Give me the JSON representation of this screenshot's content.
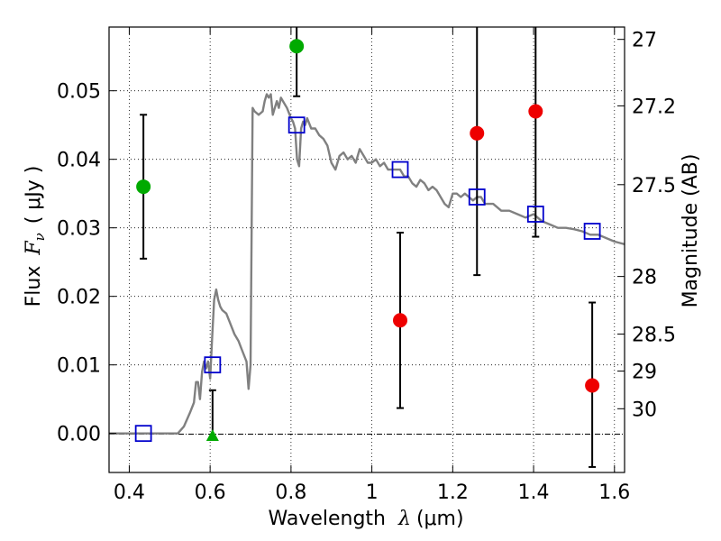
{
  "chart_data": {
    "type": "scatter",
    "xlabel": {
      "prefix": "Wavelength",
      "symbol": "λ",
      "units": "(μm)"
    },
    "ylabel": {
      "prefix": "Flux",
      "symbol": "F",
      "subscript": "ν",
      "units": "( μJy )"
    },
    "right_axis_label": "Magnitude (AB)",
    "xlim": [
      0.35,
      1.625
    ],
    "ylim": [
      -0.0057,
      0.0593
    ],
    "x_ticks": [
      0.4,
      0.6,
      0.8,
      1.0,
      1.2,
      1.4,
      1.6
    ],
    "x_tick_labels": [
      "0.4",
      "0.6",
      "0.8",
      "1",
      "1.2",
      "1.4",
      "1.6"
    ],
    "y_ticks": [
      0.0,
      0.01,
      0.02,
      0.03,
      0.04,
      0.05
    ],
    "y_tick_labels": [
      "0.00",
      "0.01",
      "0.02",
      "0.03",
      "0.04",
      "0.05"
    ],
    "magnitude_ticks": [
      {
        "label": "27",
        "flux": 0.0575
      },
      {
        "label": "27.2",
        "flux": 0.0478
      },
      {
        "label": "27.5",
        "flux": 0.0363
      },
      {
        "label": "28",
        "flux": 0.0229
      },
      {
        "label": "28.5",
        "flux": 0.0145
      },
      {
        "label": "29",
        "flux": 0.0091
      },
      {
        "label": "30",
        "flux": 0.0036
      }
    ],
    "grid": true,
    "series": [
      {
        "name": "model spectrum",
        "kind": "line",
        "color": "#808080",
        "points": [
          [
            0.35,
            0.0
          ],
          [
            0.52,
            0.0
          ],
          [
            0.535,
            0.001
          ],
          [
            0.55,
            0.003
          ],
          [
            0.56,
            0.0045
          ],
          [
            0.565,
            0.0075
          ],
          [
            0.57,
            0.0075
          ],
          [
            0.575,
            0.005
          ],
          [
            0.58,
            0.009
          ],
          [
            0.585,
            0.0105
          ],
          [
            0.59,
            0.0095
          ],
          [
            0.595,
            0.0105
          ],
          [
            0.6,
            0.008
          ],
          [
            0.605,
            0.014
          ],
          [
            0.61,
            0.0195
          ],
          [
            0.615,
            0.021
          ],
          [
            0.62,
            0.0195
          ],
          [
            0.625,
            0.0185
          ],
          [
            0.63,
            0.018
          ],
          [
            0.64,
            0.0175
          ],
          [
            0.65,
            0.016
          ],
          [
            0.66,
            0.0145
          ],
          [
            0.67,
            0.0135
          ],
          [
            0.68,
            0.012
          ],
          [
            0.69,
            0.0105
          ],
          [
            0.695,
            0.0065
          ],
          [
            0.7,
            0.01
          ],
          [
            0.705,
            0.0475
          ],
          [
            0.71,
            0.047
          ],
          [
            0.72,
            0.0465
          ],
          [
            0.73,
            0.047
          ],
          [
            0.735,
            0.0485
          ],
          [
            0.74,
            0.0495
          ],
          [
            0.745,
            0.049
          ],
          [
            0.75,
            0.0495
          ],
          [
            0.755,
            0.0465
          ],
          [
            0.76,
            0.0475
          ],
          [
            0.765,
            0.0485
          ],
          [
            0.77,
            0.0475
          ],
          [
            0.775,
            0.049
          ],
          [
            0.78,
            0.0485
          ],
          [
            0.79,
            0.0475
          ],
          [
            0.8,
            0.046
          ],
          [
            0.805,
            0.0455
          ],
          [
            0.81,
            0.0445
          ],
          [
            0.815,
            0.04
          ],
          [
            0.82,
            0.039
          ],
          [
            0.825,
            0.0445
          ],
          [
            0.83,
            0.0455
          ],
          [
            0.835,
            0.045
          ],
          [
            0.84,
            0.046
          ],
          [
            0.85,
            0.0445
          ],
          [
            0.86,
            0.0445
          ],
          [
            0.87,
            0.0435
          ],
          [
            0.88,
            0.043
          ],
          [
            0.89,
            0.042
          ],
          [
            0.9,
            0.0395
          ],
          [
            0.91,
            0.0385
          ],
          [
            0.92,
            0.0405
          ],
          [
            0.93,
            0.041
          ],
          [
            0.94,
            0.04
          ],
          [
            0.95,
            0.0405
          ],
          [
            0.96,
            0.0395
          ],
          [
            0.97,
            0.0415
          ],
          [
            0.98,
            0.0405
          ],
          [
            0.99,
            0.0395
          ],
          [
            1.0,
            0.0395
          ],
          [
            1.01,
            0.04
          ],
          [
            1.02,
            0.039
          ],
          [
            1.03,
            0.0395
          ],
          [
            1.04,
            0.0385
          ],
          [
            1.05,
            0.0385
          ],
          [
            1.06,
            0.0385
          ],
          [
            1.07,
            0.0385
          ],
          [
            1.08,
            0.0375
          ],
          [
            1.09,
            0.0375
          ],
          [
            1.1,
            0.0365
          ],
          [
            1.11,
            0.036
          ],
          [
            1.12,
            0.037
          ],
          [
            1.13,
            0.0365
          ],
          [
            1.14,
            0.0355
          ],
          [
            1.15,
            0.036
          ],
          [
            1.16,
            0.0355
          ],
          [
            1.17,
            0.0345
          ],
          [
            1.18,
            0.0335
          ],
          [
            1.19,
            0.033
          ],
          [
            1.2,
            0.035
          ],
          [
            1.21,
            0.035
          ],
          [
            1.22,
            0.0345
          ],
          [
            1.23,
            0.035
          ],
          [
            1.24,
            0.0345
          ],
          [
            1.25,
            0.034
          ],
          [
            1.26,
            0.0345
          ],
          [
            1.27,
            0.0345
          ],
          [
            1.28,
            0.0335
          ],
          [
            1.3,
            0.0335
          ],
          [
            1.32,
            0.0325
          ],
          [
            1.34,
            0.0325
          ],
          [
            1.36,
            0.032
          ],
          [
            1.38,
            0.0315
          ],
          [
            1.4,
            0.032
          ],
          [
            1.42,
            0.031
          ],
          [
            1.44,
            0.0305
          ],
          [
            1.46,
            0.03
          ],
          [
            1.48,
            0.03
          ],
          [
            1.5,
            0.0298
          ],
          [
            1.52,
            0.0295
          ],
          [
            1.54,
            0.029
          ],
          [
            1.56,
            0.029
          ],
          [
            1.58,
            0.0285
          ],
          [
            1.6,
            0.028
          ],
          [
            1.625,
            0.0276
          ]
        ]
      },
      {
        "name": "model photometry",
        "kind": "square",
        "color": "#0000cc",
        "points": [
          [
            0.435,
            0.0
          ],
          [
            0.606,
            0.01
          ],
          [
            0.814,
            0.045
          ],
          [
            1.07,
            0.0385
          ],
          [
            1.26,
            0.0345
          ],
          [
            1.405,
            0.032
          ],
          [
            1.545,
            0.0295
          ]
        ]
      },
      {
        "name": "observed (green)",
        "kind": "circle",
        "color": "#00aa00",
        "points": [
          {
            "x": 0.435,
            "y": 0.036,
            "yerr_low": 0.0255,
            "yerr_high": 0.0465
          },
          {
            "x": 0.814,
            "y": 0.0565,
            "yerr_low": 0.0492,
            "yerr_high": 0.0593
          }
        ]
      },
      {
        "name": "upper limit (green)",
        "kind": "triangle",
        "color": "#00aa00",
        "points": [
          {
            "x": 0.606,
            "y": -0.0003,
            "yerr_low": -0.0003,
            "yerr_high": 0.0063
          }
        ]
      },
      {
        "name": "observed (red)",
        "kind": "circle",
        "color": "#ee0000",
        "points": [
          {
            "x": 1.07,
            "y": 0.0165,
            "yerr_low": 0.0037,
            "yerr_high": 0.0293
          },
          {
            "x": 1.26,
            "y": 0.0438,
            "yerr_low": 0.0231,
            "yerr_high": 0.0593
          },
          {
            "x": 1.405,
            "y": 0.047,
            "yerr_low": 0.0287,
            "yerr_high": 0.0593
          },
          {
            "x": 1.545,
            "y": 0.007,
            "yerr_low": -0.0049,
            "yerr_high": 0.0191
          }
        ]
      }
    ]
  }
}
